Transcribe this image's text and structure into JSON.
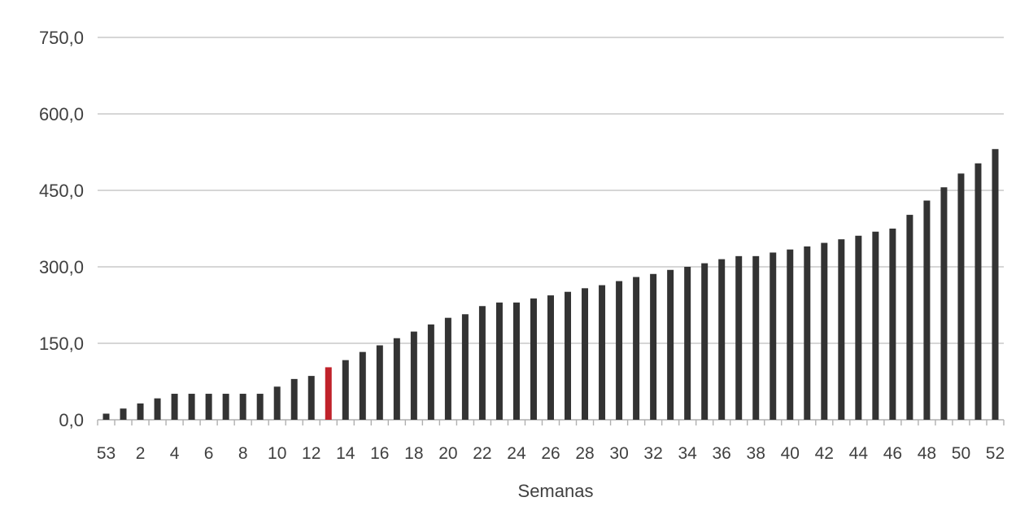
{
  "chart_data": {
    "type": "bar",
    "title": "",
    "xlabel": "Semanas",
    "ylabel": "",
    "ylim": [
      0,
      750
    ],
    "yticks": [
      "0,0",
      "150,0",
      "300,0",
      "450,0",
      "600,0",
      "750,0"
    ],
    "grid": true,
    "legend": "none",
    "colors": {
      "bar": "#333333",
      "highlight": "#c0222a"
    },
    "highlight_category": "13",
    "categories": [
      "53",
      "1",
      "2",
      "3",
      "4",
      "5",
      "6",
      "7",
      "8",
      "9",
      "10",
      "11",
      "12",
      "13",
      "14",
      "15",
      "16",
      "17",
      "18",
      "19",
      "20",
      "21",
      "22",
      "23",
      "24",
      "25",
      "26",
      "27",
      "28",
      "29",
      "30",
      "31",
      "32",
      "33",
      "34",
      "35",
      "36",
      "37",
      "38",
      "39",
      "40",
      "41",
      "42",
      "43",
      "44",
      "45",
      "46",
      "47",
      "48",
      "49",
      "50",
      "51",
      "52"
    ],
    "tick_labels": [
      "53",
      "2",
      "4",
      "6",
      "8",
      "10",
      "12",
      "14",
      "16",
      "18",
      "20",
      "22",
      "24",
      "26",
      "28",
      "30",
      "32",
      "34",
      "36",
      "38",
      "40",
      "42",
      "44",
      "46",
      "48",
      "50",
      "52"
    ],
    "values": [
      12,
      22,
      32,
      42,
      51,
      51,
      51,
      51,
      51,
      51,
      65,
      80,
      86,
      103,
      117,
      133,
      146,
      160,
      173,
      187,
      200,
      207,
      223,
      230,
      230,
      238,
      244,
      251,
      258,
      264,
      272,
      280,
      286,
      294,
      300,
      307,
      315,
      321,
      321,
      328,
      334,
      340,
      347,
      354,
      361,
      369,
      375,
      402,
      430,
      456,
      483,
      503,
      531
    ]
  }
}
